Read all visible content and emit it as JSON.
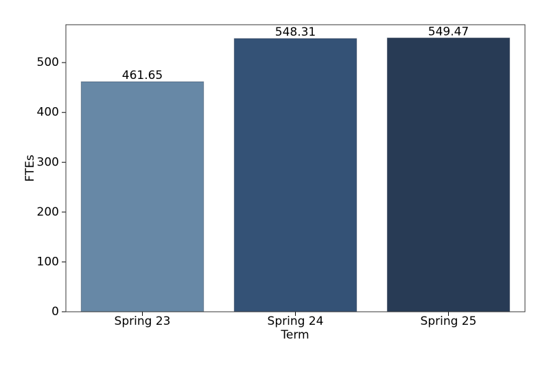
{
  "chart_data": {
    "type": "bar",
    "categories": [
      "Spring 23",
      "Spring 24",
      "Spring 25"
    ],
    "values": [
      461.65,
      548.31,
      549.47
    ],
    "colors": [
      "#6788a6",
      "#345276",
      "#283b55"
    ],
    "x_label": "Term",
    "y_label": "FTEs",
    "ylim": [
      0,
      576
    ],
    "yticks": [
      0,
      100,
      200,
      300,
      400,
      500
    ]
  }
}
